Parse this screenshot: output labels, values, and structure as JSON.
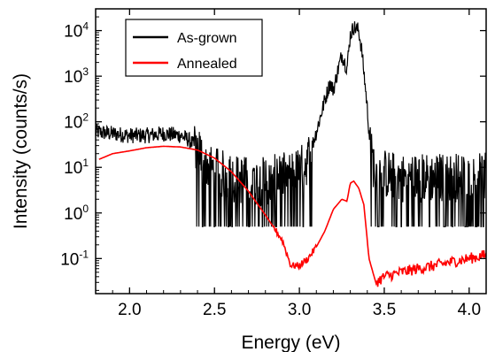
{
  "chart_data": {
    "type": "line",
    "xlabel": "Energy (eV)",
    "ylabel": "Intensity (counts/s)",
    "xlim": [
      1.8,
      4.1
    ],
    "ylim": [
      0.017,
      30000
    ],
    "yscale": "log",
    "x_ticks": [
      "2.0",
      "2.5",
      "3.0",
      "3.5",
      "4.0"
    ],
    "y_ticks": [
      {
        "value": 0.1,
        "base": "10",
        "exp": "-1"
      },
      {
        "value": 1,
        "base": "10",
        "exp": "0"
      },
      {
        "value": 10,
        "base": "10",
        "exp": "1"
      },
      {
        "value": 100,
        "base": "10",
        "exp": "2"
      },
      {
        "value": 1000,
        "base": "10",
        "exp": "3"
      },
      {
        "value": 10000,
        "base": "10",
        "exp": "4"
      }
    ],
    "legend_position": "top-left",
    "grid": false,
    "series": [
      {
        "name": "As-grown",
        "color": "#000000",
        "noisy": true,
        "x": [
          1.8,
          1.9,
          2.0,
          2.1,
          2.2,
          2.3,
          2.35,
          2.4,
          2.45,
          2.5,
          2.6,
          2.7,
          2.8,
          2.9,
          3.0,
          3.05,
          3.1,
          3.15,
          3.18,
          3.2,
          3.23,
          3.25,
          3.28,
          3.3,
          3.32,
          3.35,
          3.37,
          3.4,
          3.42,
          3.45,
          3.6,
          3.8,
          4.0,
          4.1
        ],
        "y": [
          60,
          55,
          50,
          50,
          55,
          50,
          40,
          25,
          12,
          8,
          6,
          5,
          5,
          6,
          8,
          15,
          60,
          300,
          700,
          500,
          1500,
          3000,
          1500,
          8000,
          12000,
          10000,
          3000,
          200,
          20,
          8,
          6,
          6,
          6,
          6
        ]
      },
      {
        "name": "Annealed",
        "color": "#ff0000",
        "noisy": false,
        "x": [
          1.82,
          1.9,
          2.0,
          2.1,
          2.2,
          2.3,
          2.4,
          2.5,
          2.6,
          2.7,
          2.8,
          2.9,
          2.95,
          3.0,
          3.05,
          3.1,
          3.15,
          3.2,
          3.25,
          3.28,
          3.3,
          3.32,
          3.35,
          3.38,
          3.41,
          3.45,
          3.5,
          3.6,
          3.7,
          3.8,
          3.9,
          4.0,
          4.1
        ],
        "y": [
          15,
          20,
          23,
          27,
          29,
          28,
          24,
          16,
          8,
          3,
          0.9,
          0.25,
          0.07,
          0.07,
          0.1,
          0.18,
          0.4,
          1.2,
          2.0,
          1.8,
          4.5,
          5.0,
          3.5,
          1.5,
          0.1,
          0.03,
          0.04,
          0.05,
          0.06,
          0.07,
          0.085,
          0.1,
          0.12
        ]
      }
    ]
  }
}
